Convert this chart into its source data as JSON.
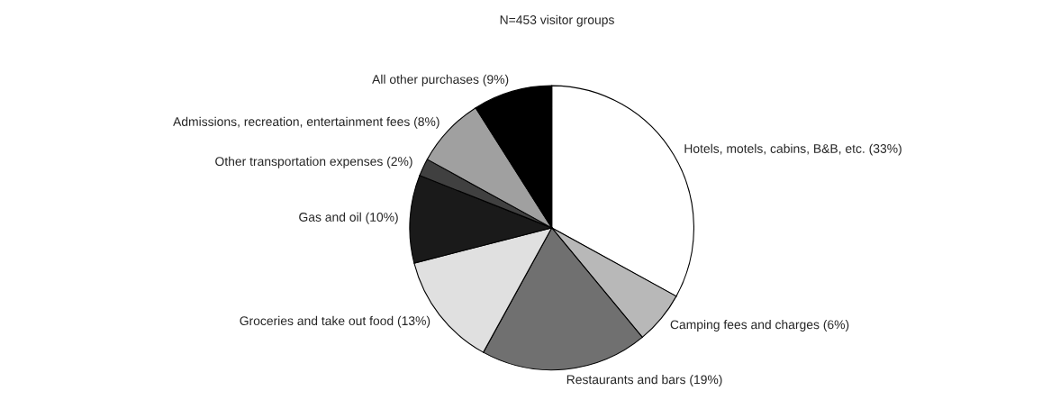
{
  "chart_data": {
    "type": "pie",
    "title": "N=453 visitor groups",
    "categories": [
      "Hotels, motels, cabins, B&B, etc. (33%)",
      "Camping fees and charges (6%)",
      "Restaurants and bars (19%)",
      "Groceries and take out food (13%)",
      "Gas and oil (10%)",
      "Other transportation expenses (2%)",
      "Admissions, recreation, entertainment fees (8%)",
      "All other purchases (9%)"
    ],
    "values": [
      33,
      6,
      19,
      13,
      10,
      2,
      8,
      9
    ],
    "colors": [
      "#ffffff",
      "#b8b8b8",
      "#707070",
      "#e0e0e0",
      "#1a1a1a",
      "#404040",
      "#a0a0a0",
      "#000000"
    ]
  }
}
